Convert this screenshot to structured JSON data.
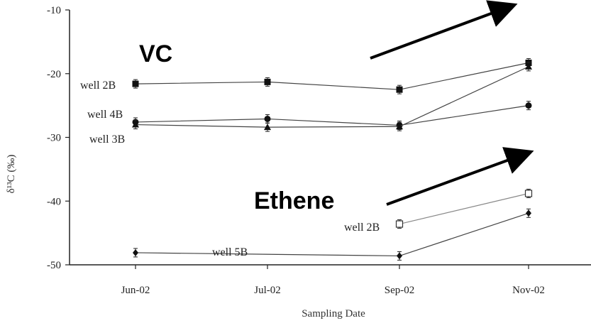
{
  "chart_data": {
    "type": "line",
    "xlabel": "Sampling Date",
    "ylabel": "δ¹³C (‰)",
    "categories": [
      "Jun-02",
      "Jul-02",
      "Sep-02",
      "Nov-02"
    ],
    "ylim": [
      -50,
      -10
    ],
    "yticks": [
      "-10",
      "-20",
      "-30",
      "-40",
      "-50"
    ],
    "ytick_values": [
      -10,
      -20,
      -30,
      -40,
      -50
    ],
    "grid": false,
    "series": [
      {
        "name": "well 2B",
        "group": "VC",
        "marker": "square-filled",
        "values": [
          -21.6,
          -21.3,
          -22.5,
          -18.3
        ]
      },
      {
        "name": "well 4B",
        "group": "VC",
        "marker": "circle-filled",
        "values": [
          -27.6,
          -27.1,
          -28.1,
          -25.0
        ]
      },
      {
        "name": "well 3B",
        "group": "VC",
        "marker": "triangle-filled",
        "values": [
          -28.0,
          -28.4,
          -28.3,
          -18.9
        ]
      },
      {
        "name": "well 2B",
        "group": "Ethene",
        "marker": "square-open",
        "values": [
          null,
          null,
          -43.6,
          -38.8
        ]
      },
      {
        "name": "well 5B",
        "group": "Ethene",
        "marker": "diamond-filled",
        "values": [
          -48.1,
          null,
          -48.6,
          -41.9
        ]
      }
    ],
    "annotations": [
      {
        "text": "VC",
        "kind": "group-title"
      },
      {
        "text": "Ethene",
        "kind": "group-title"
      }
    ]
  },
  "colors": {
    "line": "#444444",
    "marker": "#111111",
    "arrow": "#000000",
    "axis": "#222222"
  }
}
